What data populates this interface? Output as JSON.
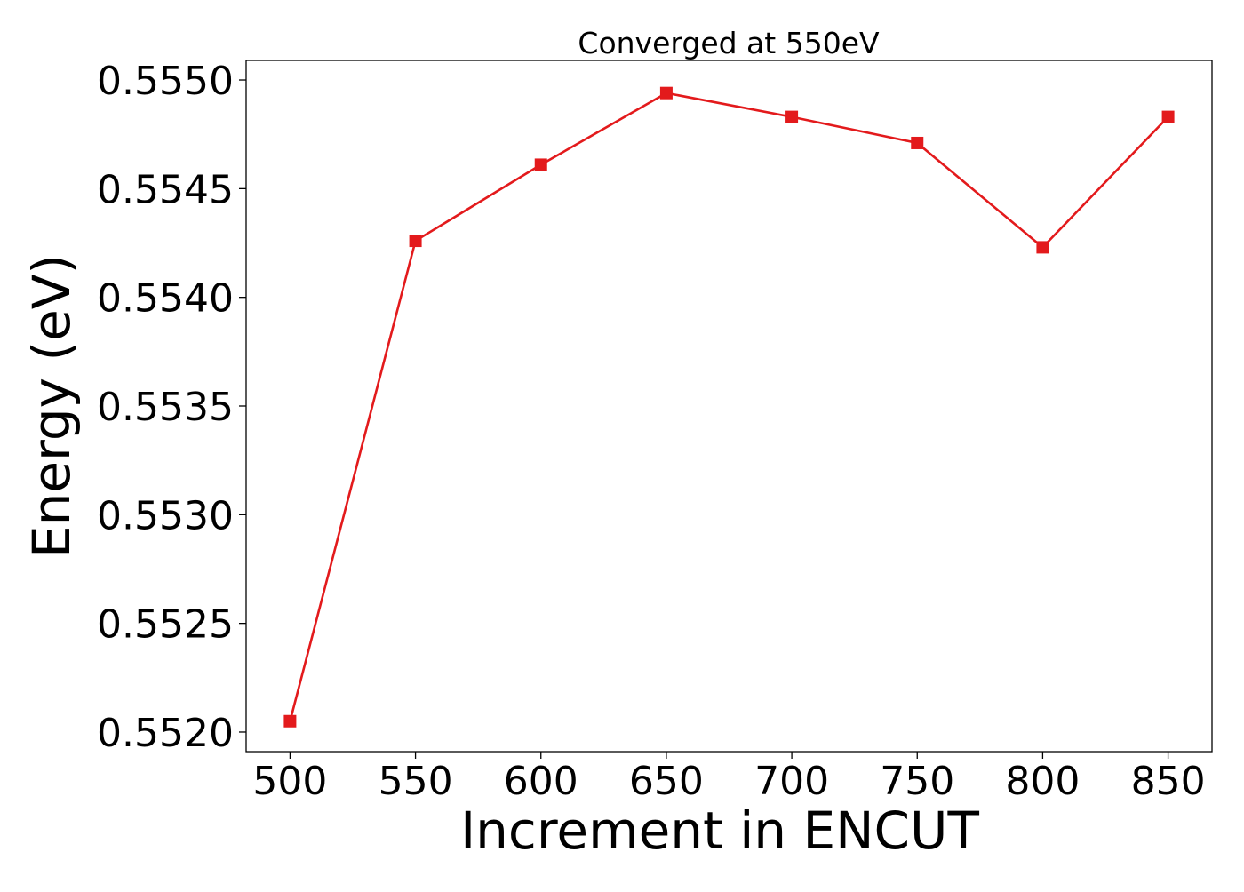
{
  "chart_data": {
    "type": "line",
    "title": "Converged at 550eV",
    "xlabel": "Increment in ENCUT",
    "ylabel": "Energy (eV)",
    "x": [
      500,
      550,
      600,
      650,
      700,
      750,
      800,
      850
    ],
    "series": [
      {
        "values": [
          0.55205,
          0.55426,
          0.55461,
          0.55494,
          0.55483,
          0.55471,
          0.55423,
          0.55483
        ],
        "color": "#e31a1c",
        "marker": "square"
      }
    ],
    "xticks": [
      "500",
      "550",
      "600",
      "650",
      "700",
      "750",
      "800",
      "850"
    ],
    "yticks": [
      "0.5520",
      "0.5525",
      "0.5530",
      "0.5535",
      "0.5540",
      "0.5545",
      "0.5550"
    ],
    "xlim": [
      482.5,
      867.5
    ],
    "ylim": [
      0.55191,
      0.55509
    ],
    "grid": false,
    "legend": "none"
  }
}
